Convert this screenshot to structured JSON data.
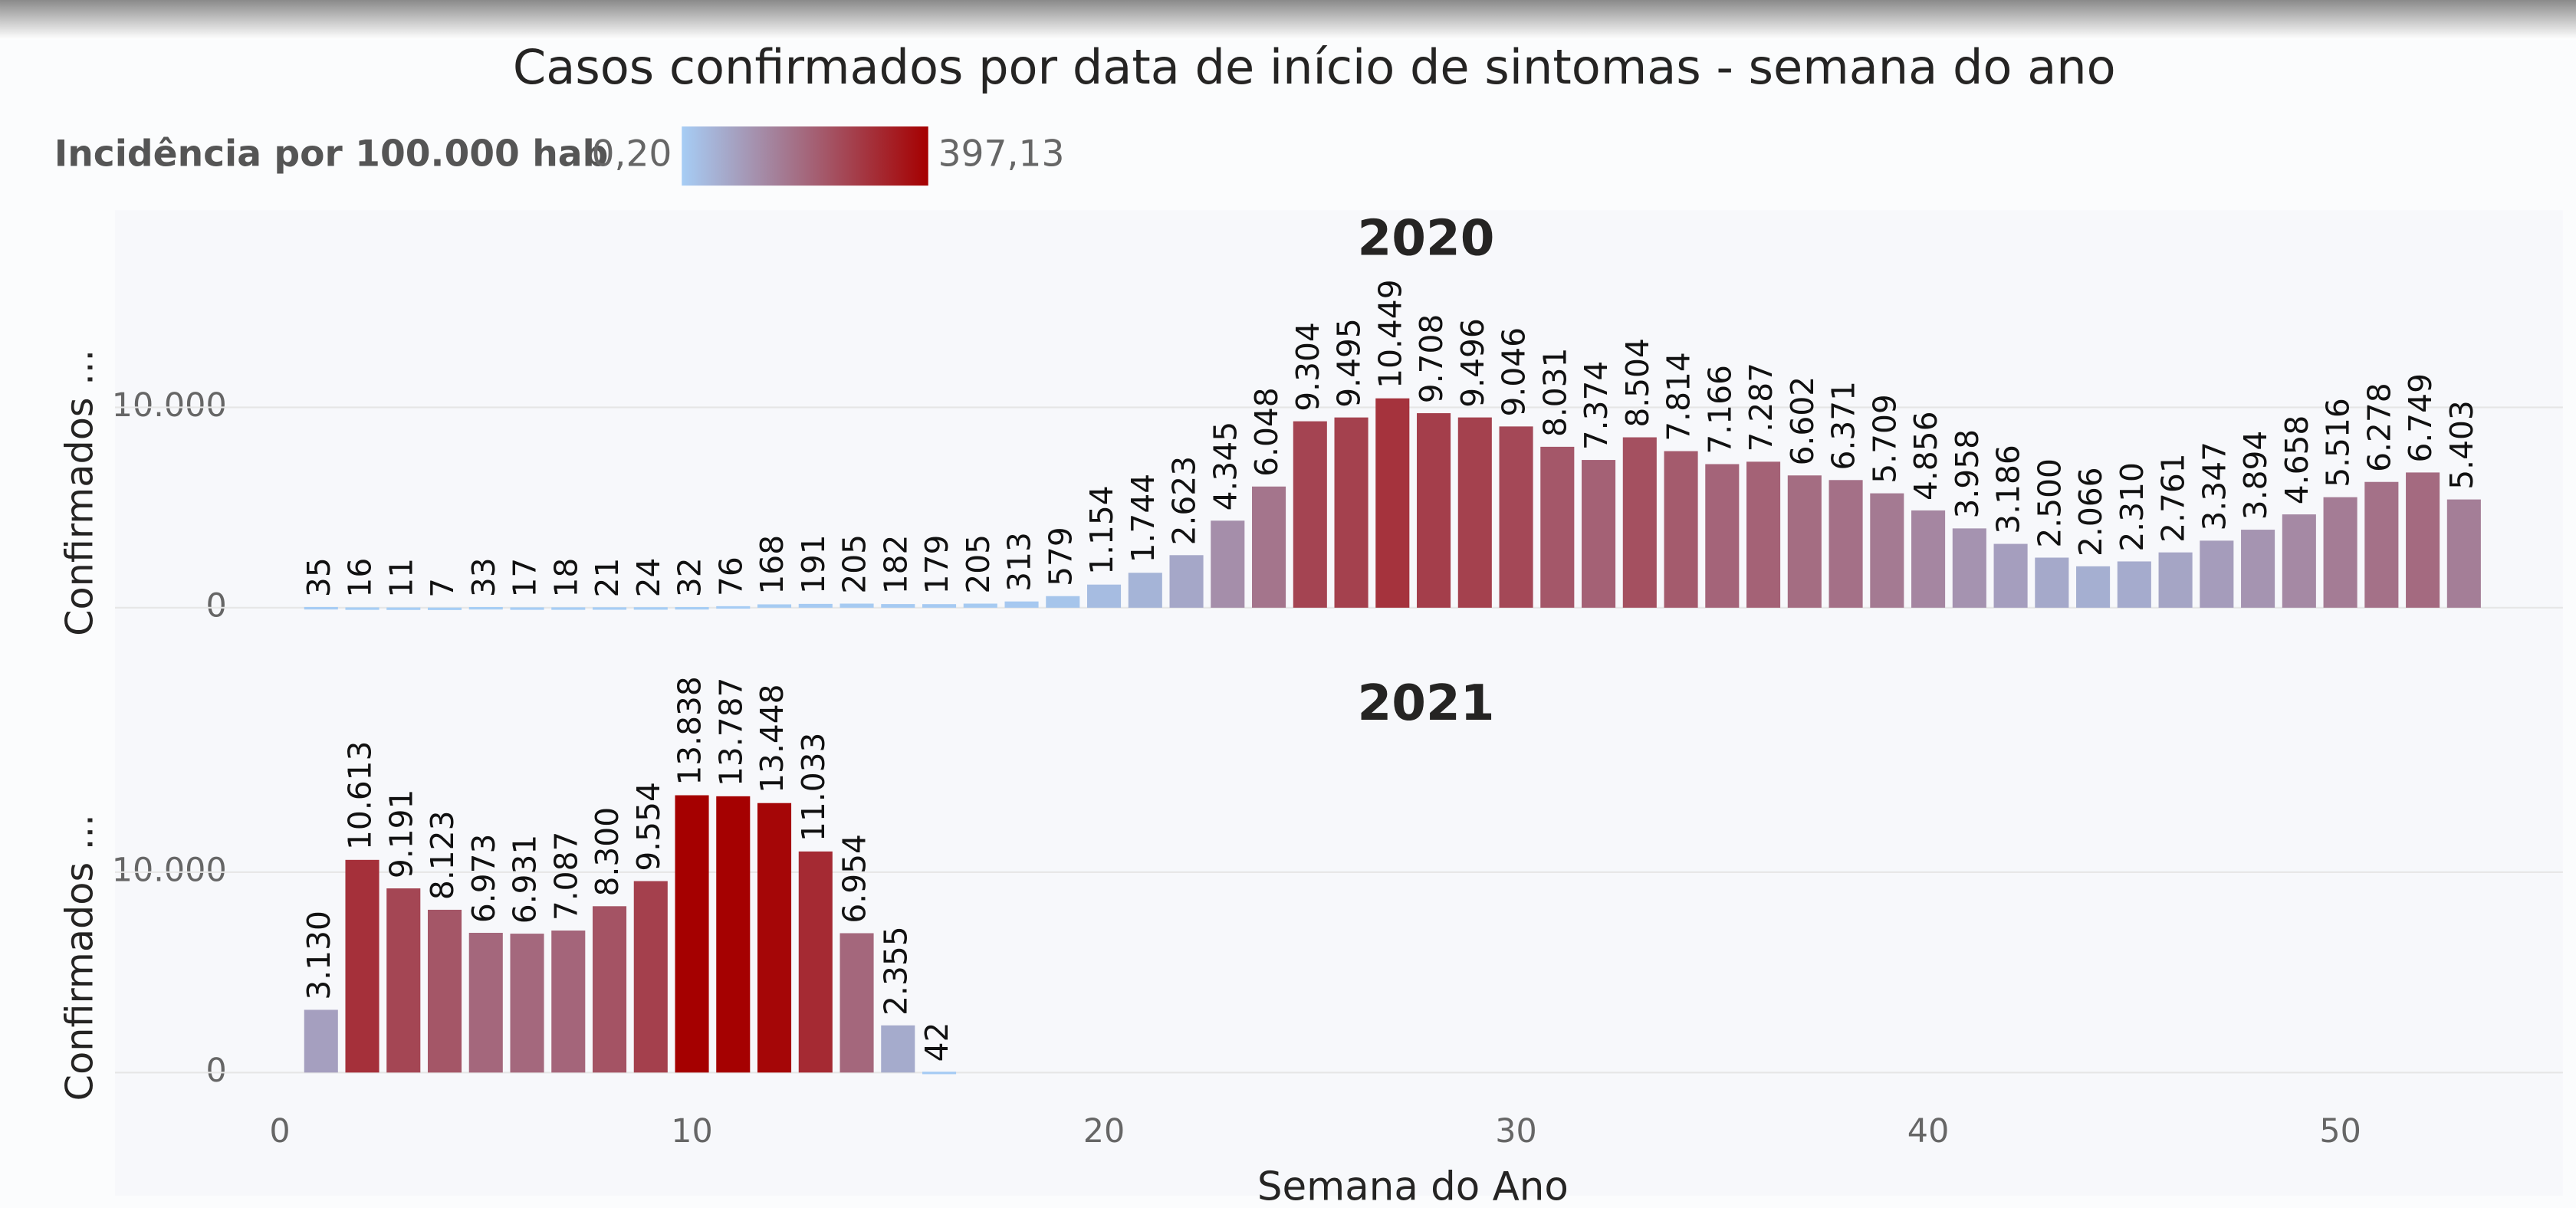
{
  "chart_data": {
    "type": "bar",
    "title": "Casos confirmados por data de início de sintomas - semana do ano",
    "legend": {
      "title": "Incidência por 100.000 hab",
      "min": {
        "value": 0.2,
        "label": "0,20"
      },
      "max": {
        "value": 397.13,
        "label": "397,13"
      },
      "colors": [
        "#a6cdf5",
        "#a4687d",
        "#a50000"
      ]
    },
    "x_label": "Semana do Ano",
    "y_label": "Confirmados ...",
    "xlim": [
      -4,
      55.4
    ],
    "xticks": [
      0,
      10,
      20,
      30,
      40,
      50
    ],
    "ylim": [
      0,
      15000
    ],
    "yticks": [
      0,
      {
        "value": 10000,
        "label": "10.000"
      }
    ],
    "grid": true,
    "panels": [
      {
        "title": "2020",
        "x": [
          1,
          2,
          3,
          4,
          5,
          6,
          7,
          8,
          9,
          10,
          11,
          12,
          13,
          14,
          15,
          16,
          17,
          18,
          19,
          20,
          21,
          22,
          23,
          24,
          25,
          26,
          27,
          28,
          29,
          30,
          31,
          32,
          33,
          34,
          35,
          36,
          37,
          38,
          39,
          40,
          41,
          42,
          43,
          44,
          45,
          46,
          47,
          48,
          49,
          50,
          51,
          52,
          53
        ],
        "values": [
          35,
          16,
          11,
          7,
          33,
          17,
          18,
          21,
          24,
          32,
          76,
          168,
          191,
          205,
          182,
          179,
          205,
          313,
          579,
          1154,
          1744,
          2623,
          4345,
          6048,
          9304,
          9495,
          10449,
          9708,
          9496,
          9046,
          8031,
          7374,
          8504,
          7814,
          7166,
          7287,
          6602,
          6371,
          5709,
          4856,
          3958,
          3186,
          2500,
          2066,
          2310,
          2761,
          3347,
          3894,
          4658,
          5516,
          6278,
          6749,
          5403
        ],
        "value_labels": [
          "35",
          "16",
          "11",
          "7",
          "33",
          "17",
          "18",
          "21",
          "24",
          "32",
          "76",
          "168",
          "191",
          "205",
          "182",
          "179",
          "205",
          "313",
          "579",
          "1.154",
          "1.744",
          "2.623",
          "4.345",
          "6.048",
          "9.304",
          "9.495",
          "10.449",
          "9.708",
          "9.496",
          "9.046",
          "8.031",
          "7.374",
          "8.504",
          "7.814",
          "7.166",
          "7.287",
          "6.602",
          "6.371",
          "5.709",
          "4.856",
          "3.958",
          "3.186",
          "2.500",
          "2.066",
          "2.310",
          "2.761",
          "3.347",
          "3.894",
          "4.658",
          "5.516",
          "6.278",
          "6.749",
          "5.403"
        ]
      },
      {
        "title": "2021",
        "x": [
          1,
          2,
          3,
          4,
          5,
          6,
          7,
          8,
          9,
          10,
          11,
          12,
          13,
          14,
          15,
          16
        ],
        "values": [
          3130,
          10613,
          9191,
          8123,
          6973,
          6931,
          7087,
          8300,
          9554,
          13838,
          13787,
          13448,
          11033,
          6954,
          2355,
          42
        ],
        "value_labels": [
          "3.130",
          "10.613",
          "9.191",
          "8.123",
          "6.973",
          "6.931",
          "7.087",
          "8.300",
          "9.554",
          "13.838",
          "13.787",
          "13.448",
          "11.033",
          "6.954",
          "2.355",
          "42"
        ]
      }
    ]
  }
}
